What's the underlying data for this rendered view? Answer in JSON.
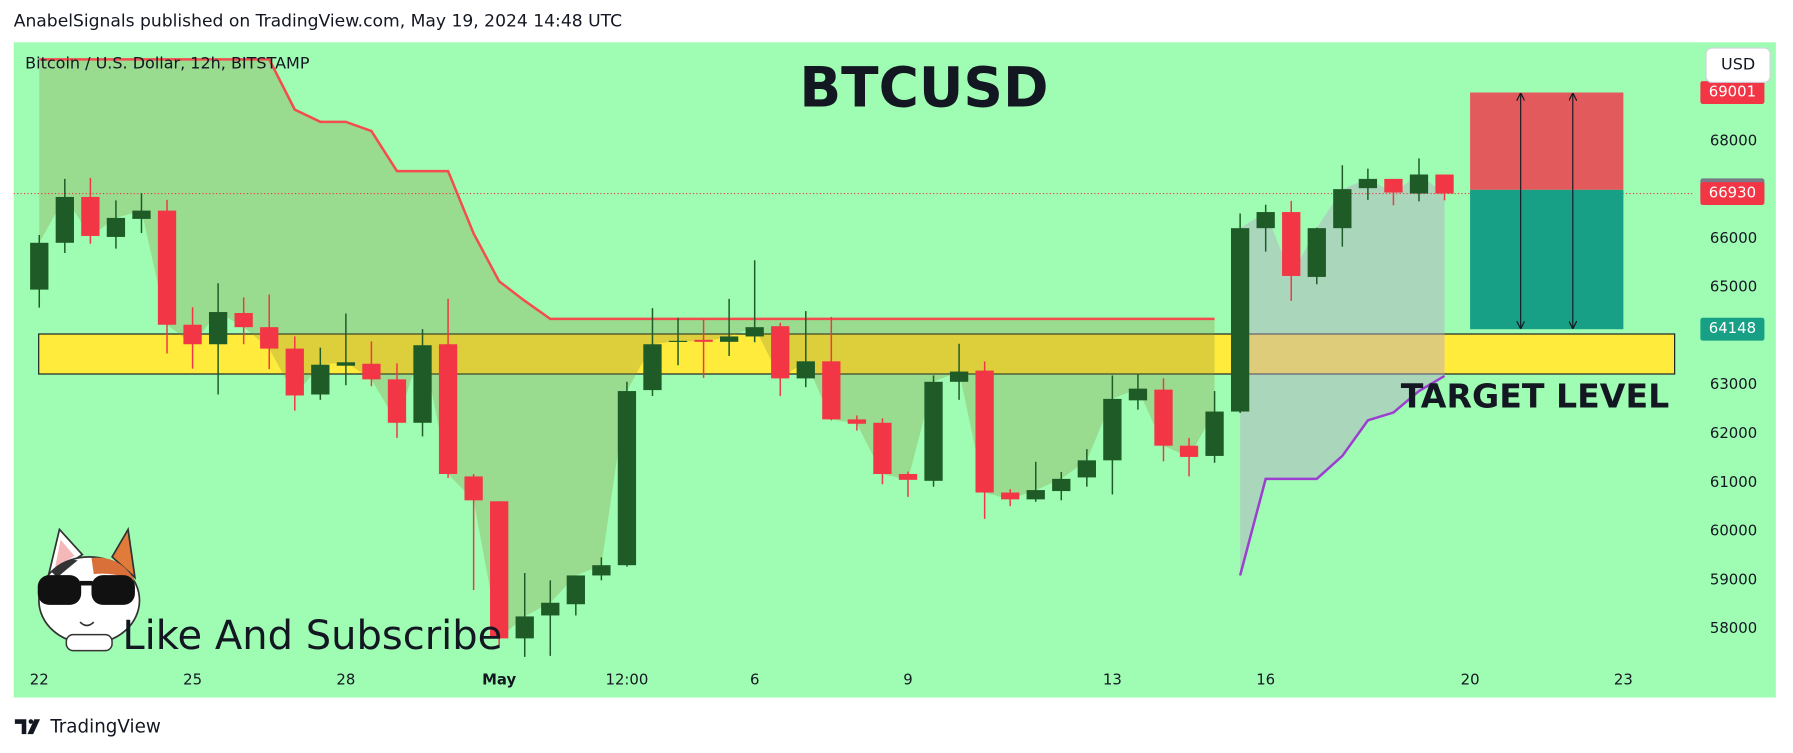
{
  "header": "AnabelSignals published on TradingView.com, May 19, 2024 14:48 UTC",
  "footer": "TradingView",
  "chart_data": {
    "type": "candlestick",
    "title": "BTCUSD",
    "subtitle": "Bitcoin / U.S. Dollar, 12h, BITSTAMP",
    "currency": "USD",
    "annotations": [
      "Like And Subscribe"
    ],
    "up_color": "#1e5b27",
    "down_color": "#f23645",
    "x": [
      0,
      1,
      2,
      3,
      4,
      5,
      6,
      7,
      8,
      9,
      10,
      11,
      12,
      13,
      14,
      15,
      16,
      17,
      18,
      19,
      20,
      21,
      22,
      23,
      24,
      25,
      26,
      27,
      28,
      29,
      30,
      31,
      32,
      33,
      34,
      35,
      36,
      37,
      38,
      39,
      40,
      41,
      42,
      43,
      44,
      45,
      46,
      47,
      48,
      49,
      50,
      51,
      52,
      53,
      54,
      55
    ],
    "open": [
      64960,
      65920,
      66860,
      66040,
      66410,
      66580,
      64240,
      63840,
      64480,
      64190,
      63750,
      62810,
      63400,
      63440,
      63120,
      62230,
      63840,
      61130,
      60620,
      57810,
      58280,
      58510,
      59100,
      59310,
      62900,
      63890,
      63930,
      63890,
      64000,
      64210,
      63140,
      63490,
      62300,
      62230,
      61180,
      61040,
      63070,
      63300,
      60800,
      60660,
      60830,
      61110,
      61460,
      62690,
      62910,
      61760,
      61550,
      62460,
      66220,
      66550,
      65220,
      66220,
      67040,
      67230,
      66930,
      67320
    ],
    "high": [
      66080,
      67230,
      67250,
      66790,
      66940,
      66800,
      64600,
      65090,
      64800,
      64860,
      64000,
      63770,
      64470,
      63900,
      63450,
      64150,
      64770,
      61180,
      60620,
      59150,
      59000,
      59100,
      59470,
      63070,
      64580,
      64380,
      64350,
      64770,
      65560,
      64280,
      64520,
      64400,
      62380,
      62320,
      61230,
      63200,
      63850,
      63490,
      60870,
      61430,
      61220,
      61690,
      63200,
      63240,
      63140,
      61920,
      62880,
      66520,
      66700,
      66780,
      66230,
      67510,
      67440,
      67230,
      67650,
      67320
    ],
    "low": [
      64590,
      65710,
      65900,
      65800,
      66120,
      63650,
      63340,
      62810,
      63840,
      63330,
      62480,
      62700,
      63000,
      62980,
      61920,
      61950,
      61100,
      58800,
      57610,
      57430,
      57450,
      58280,
      59000,
      59280,
      62780,
      63410,
      63150,
      63600,
      63880,
      62780,
      62960,
      62280,
      62070,
      60970,
      60710,
      60920,
      62700,
      60260,
      60520,
      60610,
      60640,
      60920,
      60760,
      62500,
      61440,
      61130,
      61410,
      62430,
      65740,
      64730,
      65070,
      65840,
      66800,
      66690,
      66770,
      66790
    ],
    "close": [
      65920,
      66860,
      66060,
      66430,
      66580,
      64240,
      63840,
      64500,
      64190,
      63750,
      62790,
      63420,
      63470,
      63120,
      62230,
      63820,
      61180,
      60640,
      57810,
      58260,
      58540,
      59100,
      59310,
      62880,
      63840,
      63910,
      63890,
      64000,
      64190,
      63140,
      63490,
      62300,
      62210,
      61180,
      61060,
      63070,
      63280,
      60800,
      60660,
      60850,
      61080,
      61460,
      62720,
      62930,
      61760,
      61530,
      62460,
      66220,
      66550,
      65240,
      66220,
      67020,
      67230,
      66950,
      67320,
      66930
    ],
    "lines": [
      {
        "color": "#f44d4d",
        "values": [
          69680,
          69680,
          69680,
          69680,
          69680,
          69680,
          69680,
          69680,
          69680,
          69680,
          68650,
          68400,
          68400,
          68210,
          67390,
          67390,
          67390,
          66110,
          65130,
          64730,
          64360,
          64360,
          64360,
          64360,
          64360,
          64360,
          64360,
          64360,
          64360,
          64360,
          64360,
          64360,
          64360,
          64360,
          64360,
          64360,
          64360,
          64360,
          64360,
          64360,
          64360,
          64360,
          64360,
          64360,
          64360,
          64360,
          64360,
          null,
          null,
          null,
          null,
          null,
          null,
          null,
          null,
          null
        ]
      },
      {
        "color": "#9c3fd0",
        "values": [
          null,
          null,
          null,
          null,
          null,
          null,
          null,
          null,
          null,
          null,
          null,
          null,
          null,
          null,
          null,
          null,
          null,
          null,
          null,
          null,
          null,
          null,
          null,
          null,
          null,
          null,
          null,
          null,
          null,
          null,
          null,
          null,
          null,
          null,
          null,
          null,
          null,
          null,
          null,
          null,
          null,
          null,
          null,
          null,
          null,
          null,
          null,
          59100,
          61080,
          61080,
          61080,
          61550,
          62280,
          62440,
          62880,
          63190
        ]
      }
    ],
    "zone": {
      "low": 63230,
      "high": 64050,
      "label": "TARGET LEVEL",
      "color": "#ffeb3b"
    },
    "position": {
      "entry": 67005,
      "stop": 69001,
      "target": 64148,
      "x": [
        56,
        62
      ],
      "stop_color": "#e35a5d",
      "target_color": "#17a085",
      "entry_color": "#787b86"
    },
    "xlim": [
      -1,
      64.7
    ],
    "xticks": [
      {
        "value": 0,
        "label": "22"
      },
      {
        "value": 6,
        "label": "25"
      },
      {
        "value": 12,
        "label": "28"
      },
      {
        "value": 18,
        "label": "May"
      },
      {
        "value": 23,
        "label": "12:00"
      },
      {
        "value": 28,
        "label": "6"
      },
      {
        "value": 34,
        "label": "9"
      },
      {
        "value": 42,
        "label": "13"
      },
      {
        "value": 48,
        "label": "16"
      },
      {
        "value": 56,
        "label": "20"
      },
      {
        "value": 62,
        "label": "23"
      }
    ],
    "ylim": [
      57230,
      70030
    ],
    "yticks": [
      58000,
      59000,
      60000,
      61000,
      62000,
      63000,
      64000,
      65000,
      66000,
      67000,
      68000
    ],
    "grid": false
  }
}
